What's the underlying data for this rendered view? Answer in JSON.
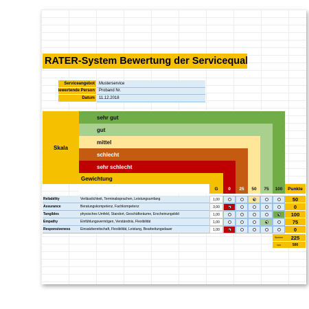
{
  "title": "RATER-System Bewertung der Servicequalität",
  "info": [
    {
      "label": "Serviceangebot",
      "value": "Musterservice"
    },
    {
      "label": "Bewertende Person",
      "value": "Proband Nr."
    },
    {
      "label": "Datum",
      "value": "11.12.2018"
    }
  ],
  "scale": {
    "label": "Skala",
    "weight_label": "Gewichtung",
    "levels": [
      {
        "name": "sehr gut",
        "color": "#70ad47"
      },
      {
        "name": "gut",
        "color": "#a9d08e"
      },
      {
        "name": "mittel",
        "color": "#ffe699"
      },
      {
        "name": "schlecht",
        "color": "#c55a11"
      },
      {
        "name": "sehr schlecht",
        "color": "#c00000"
      }
    ]
  },
  "columns": {
    "weight": "G",
    "ratings": [
      0,
      25,
      50,
      75,
      100
    ],
    "points": "Punkte"
  },
  "rows": [
    {
      "dimension": "Reliability",
      "description": "Verlässlichkeit, Terminabsprachen, Leistungsumfang",
      "weight": "1,00",
      "rating": 50,
      "points": 50
    },
    {
      "dimension": "Assurance",
      "description": "Beratungskompetenz, Fachkompetenz",
      "weight": "3,00",
      "rating": 0,
      "points": 0
    },
    {
      "dimension": "Tangibles",
      "description": "physisches Umfeld, Standort, Geschäftsräume, Erscheinungsbild",
      "weight": "1,00",
      "rating": 100,
      "points": 100
    },
    {
      "dimension": "Empathy",
      "description": "Einfühlungsvermögen, Verständnis, Flexibilität",
      "weight": "1,00",
      "rating": 75,
      "points": 75
    },
    {
      "dimension": "Responsiveness",
      "description": "Einsatzbereitschaft, Flexibilität, Leistung, Bearbeitungsdauer",
      "weight": "1,00",
      "rating": 0,
      "points": 0
    }
  ],
  "total": {
    "label": "Summe",
    "value": 225,
    "max_label": "von",
    "max": 500
  }
}
